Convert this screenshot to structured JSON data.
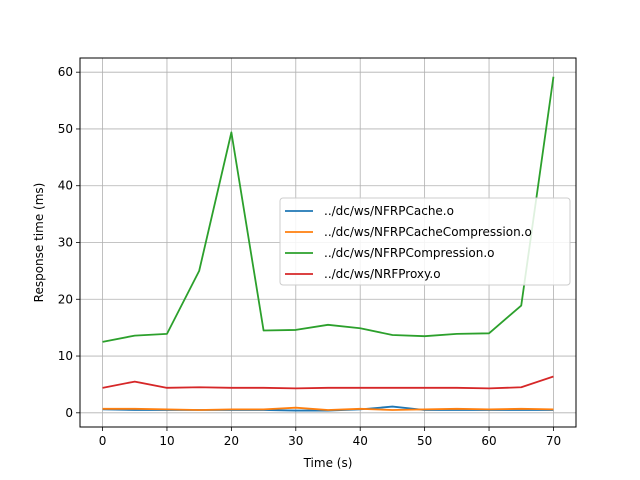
{
  "chart_data": {
    "type": "line",
    "title": "",
    "xlabel": "Time (s)",
    "ylabel": "Response time (ms)",
    "xlim": [
      -3.5,
      73.5
    ],
    "ylim": [
      -2.5,
      62.5
    ],
    "xticks": [
      0,
      10,
      20,
      30,
      40,
      50,
      60,
      70
    ],
    "yticks": [
      0,
      10,
      20,
      30,
      40,
      50,
      60
    ],
    "grid": true,
    "legend_position": "center-right",
    "x": [
      0,
      5,
      10,
      15,
      20,
      25,
      30,
      35,
      40,
      45,
      50,
      55,
      60,
      65,
      70
    ],
    "series": [
      {
        "name": "../dc/ws/NFRPCache.o",
        "color": "#1f77b4",
        "values": [
          0.6,
          0.5,
          0.5,
          0.5,
          0.5,
          0.5,
          0.4,
          0.4,
          0.6,
          1.1,
          0.5,
          0.5,
          0.5,
          0.5,
          0.5
        ]
      },
      {
        "name": "../dc/ws/NFRPCacheCompression.o",
        "color": "#ff7f0e",
        "values": [
          0.7,
          0.7,
          0.6,
          0.5,
          0.6,
          0.6,
          0.9,
          0.5,
          0.7,
          0.5,
          0.6,
          0.7,
          0.6,
          0.7,
          0.6
        ]
      },
      {
        "name": "../dc/ws/NFRPCompression.o",
        "color": "#2ca02c",
        "values": [
          12.5,
          13.6,
          13.9,
          25.0,
          49.4,
          14.5,
          14.6,
          15.5,
          14.9,
          13.7,
          13.5,
          13.9,
          14.0,
          18.9,
          59.2
        ]
      },
      {
        "name": "../dc/ws/NRFProxy.o",
        "color": "#d62728",
        "values": [
          4.4,
          5.5,
          4.4,
          4.5,
          4.4,
          4.4,
          4.3,
          4.4,
          4.4,
          4.4,
          4.4,
          4.4,
          4.3,
          4.5,
          6.4
        ]
      }
    ]
  }
}
